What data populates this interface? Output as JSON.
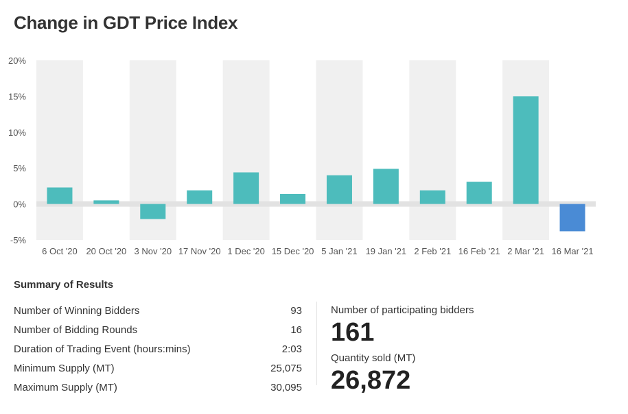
{
  "title": "Change in GDT Price Index",
  "chart_data": {
    "type": "bar",
    "title": "Change in GDT Price Index",
    "categories": [
      "6 Oct '20",
      "20 Oct '20",
      "3 Nov '20",
      "17 Nov '20",
      "1 Dec '20",
      "15 Dec '20",
      "5 Jan '21",
      "19 Jan '21",
      "2 Feb '21",
      "16 Feb '21",
      "2 Mar '21",
      "16 Mar '21"
    ],
    "values": [
      2.3,
      0.5,
      -2.1,
      1.9,
      4.4,
      1.4,
      4.0,
      4.9,
      1.9,
      3.1,
      15.0,
      -3.8
    ],
    "yticks": [
      "20%",
      "15%",
      "10%",
      "5%",
      "0%",
      "-5%"
    ],
    "ylim": [
      -5,
      20
    ],
    "xlabel": "",
    "ylabel": "",
    "colors": {
      "default": "#4dbcbc",
      "latest": "#4a8bd5",
      "band": "#f0f0f0",
      "zero_line": "#e2e2e2"
    }
  },
  "summary": {
    "title": "Summary of Results",
    "rows": [
      {
        "label": "Number of Winning Bidders",
        "value": "93"
      },
      {
        "label": "Number of Bidding Rounds",
        "value": "16"
      },
      {
        "label": "Duration of Trading Event (hours:mins)",
        "value": "2:03"
      },
      {
        "label": "Minimum Supply (MT)",
        "value": "25,075"
      },
      {
        "label": "Maximum Supply (MT)",
        "value": "30,095"
      }
    ],
    "participating_label": "Number of participating bidders",
    "participating_value": "161",
    "quantity_label": "Quantity sold (MT)",
    "quantity_value": "26,872"
  }
}
